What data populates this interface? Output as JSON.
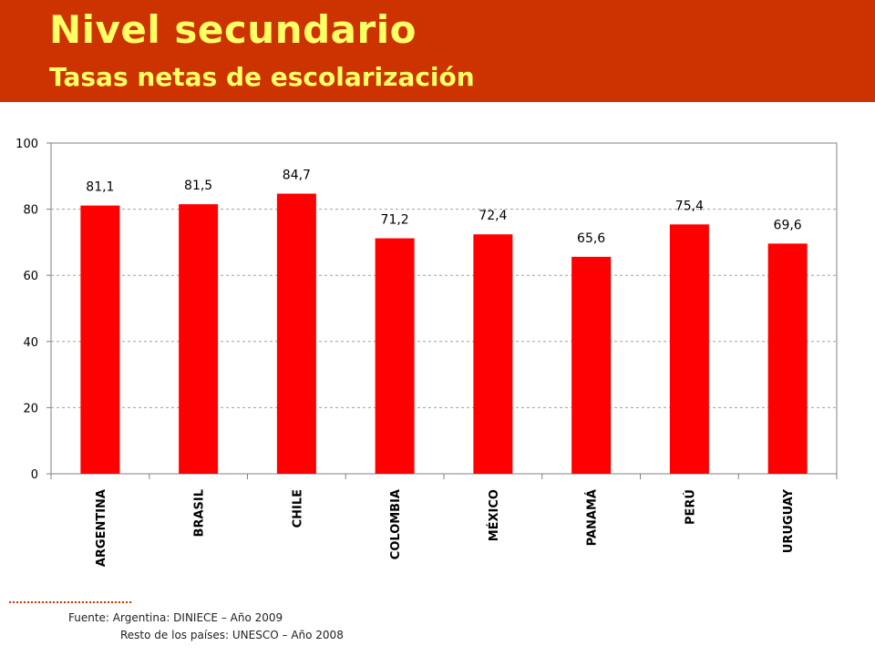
{
  "header": {
    "title": "Nivel secundario",
    "subtitle": "Tasas netas de escolarización"
  },
  "colors": {
    "header_bg": "#cc3300",
    "title_text": "#ffff66",
    "bar": "#ff0000"
  },
  "chart_data": {
    "type": "bar",
    "categories": [
      "ARGENTINA",
      "BRASIL",
      "CHILE",
      "COLOMBIA",
      "MÉXICO",
      "PANAMÁ",
      "PERÚ",
      "URUGUAY"
    ],
    "values": [
      81.1,
      81.5,
      84.7,
      71.2,
      72.4,
      65.6,
      75.4,
      69.6
    ],
    "value_labels": [
      "81,1",
      "81,5",
      "84,7",
      "71,2",
      "72,4",
      "65,6",
      "75,4",
      "69,6"
    ],
    "y_ticks": [
      "0",
      "20",
      "40",
      "60",
      "80",
      "100"
    ],
    "ylim": [
      0,
      100
    ],
    "grid": true,
    "bar_color": "#ff0000"
  },
  "footer": {
    "source_line1": "Fuente: Argentina: DINIECE – Año 2009",
    "source_line2": "Resto de los países: UNESCO – Año 2008"
  }
}
